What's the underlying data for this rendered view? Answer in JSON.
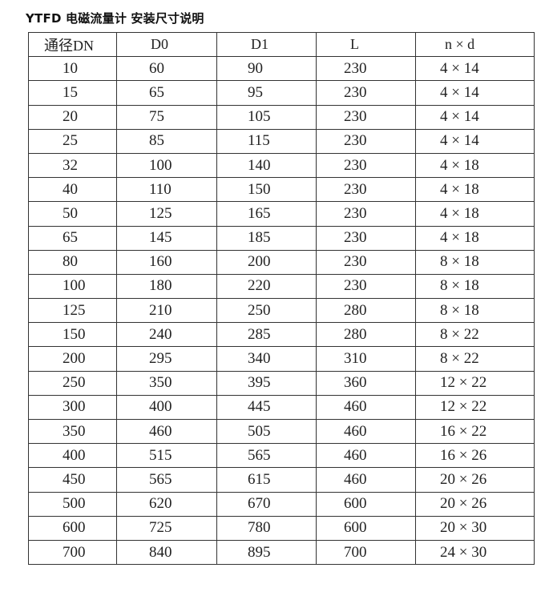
{
  "title": "YTFD 电磁流量计 安装尺寸说明",
  "table": {
    "headers": [
      "通径DN",
      "D0",
      "D1",
      "L",
      "n × d"
    ],
    "rows": [
      [
        "10",
        "60",
        "90",
        "230",
        "4 × 14"
      ],
      [
        "15",
        "65",
        "95",
        "230",
        "4 × 14"
      ],
      [
        "20",
        "75",
        "105",
        "230",
        "4 × 14"
      ],
      [
        "25",
        "85",
        "115",
        "230",
        "4 × 14"
      ],
      [
        "32",
        "100",
        "140",
        "230",
        "4 × 18"
      ],
      [
        "40",
        "110",
        "150",
        "230",
        "4 × 18"
      ],
      [
        "50",
        "125",
        "165",
        "230",
        "4 × 18"
      ],
      [
        "65",
        "145",
        "185",
        "230",
        "4 × 18"
      ],
      [
        "80",
        "160",
        "200",
        "230",
        "8 × 18"
      ],
      [
        "100",
        "180",
        "220",
        "230",
        "8 × 18"
      ],
      [
        "125",
        "210",
        "250",
        "280",
        "8 × 18"
      ],
      [
        "150",
        "240",
        "285",
        "280",
        "8 × 22"
      ],
      [
        "200",
        "295",
        "340",
        "310",
        "8 × 22"
      ],
      [
        "250",
        "350",
        "395",
        "360",
        "12 × 22"
      ],
      [
        "300",
        "400",
        "445",
        "460",
        "12 × 22"
      ],
      [
        "350",
        "460",
        "505",
        "460",
        "16 × 22"
      ],
      [
        "400",
        "515",
        "565",
        "460",
        "16 × 26"
      ],
      [
        "450",
        "565",
        "615",
        "460",
        "20 × 26"
      ],
      [
        "500",
        "620",
        "670",
        "600",
        "20 × 26"
      ],
      [
        "600",
        "725",
        "780",
        "600",
        "20 × 30"
      ],
      [
        "700",
        "840",
        "895",
        "700",
        "24 × 30"
      ]
    ]
  }
}
